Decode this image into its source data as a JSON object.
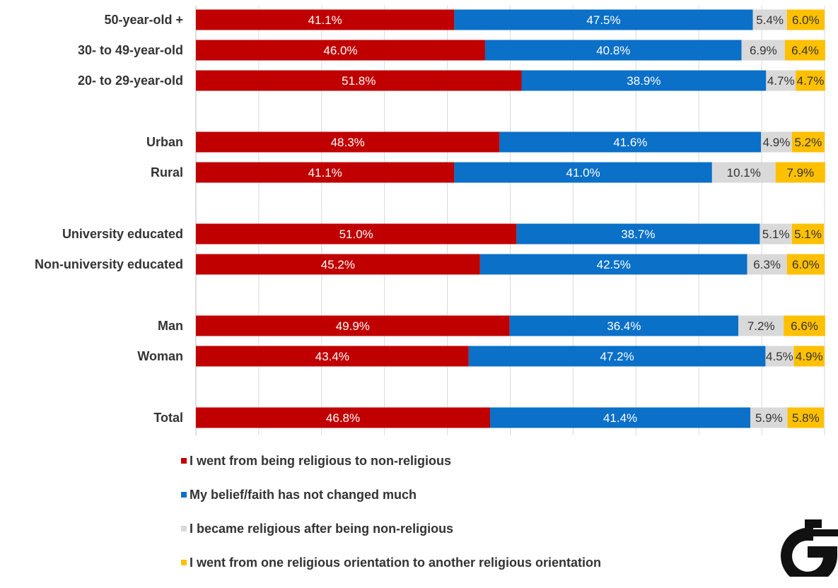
{
  "chart_data": {
    "type": "bar",
    "orientation": "horizontal",
    "stacked": true,
    "categories": [
      "50-year-old +",
      "30- to 49-year-old",
      "20- to 29-year-old",
      "Urban",
      "Rural",
      "University educated",
      "Non-university educated",
      "Man",
      "Woman",
      "Total"
    ],
    "series": [
      {
        "name": "I went from being religious to non-religious",
        "color": "#c00000",
        "values": [
          41.1,
          46.0,
          51.8,
          48.3,
          41.1,
          51.0,
          45.2,
          49.9,
          43.4,
          46.8
        ],
        "labels": [
          "41.1%",
          "46.0%",
          "51.8%",
          "48.3%",
          "41.1%",
          "51.0%",
          "45.2%",
          "49.9%",
          "43.4%",
          "46.8%"
        ]
      },
      {
        "name": "My belief/faith has not changed much",
        "color": "#0a70c8",
        "values": [
          47.5,
          40.8,
          38.9,
          41.6,
          41.0,
          38.7,
          42.5,
          36.4,
          47.2,
          41.4
        ],
        "labels": [
          "47.5%",
          "40.8%",
          "38.9%",
          "41.6%",
          "41.0%",
          "38.7%",
          "42.5%",
          "36.4%",
          "47.2%",
          "41.4%"
        ]
      },
      {
        "name": "I became religious after being non-religious",
        "color": "#d9d9d9",
        "values": [
          5.4,
          6.9,
          4.7,
          4.9,
          10.1,
          5.1,
          6.3,
          7.2,
          4.5,
          5.9
        ],
        "labels": [
          "5.4%",
          "6.9%",
          "4.7%",
          "4.9%",
          "10.1%",
          "5.1%",
          "6.3%",
          "7.2%",
          "4.5%",
          "5.9%"
        ]
      },
      {
        "name": "I went from one religious orientation to another religious orientation",
        "color": "#ffc000",
        "values": [
          6.0,
          6.4,
          4.7,
          5.2,
          7.9,
          5.1,
          6.0,
          6.6,
          4.9,
          5.8
        ],
        "labels": [
          "6.0%",
          "6.4%",
          "4.7%",
          "5.2%",
          "7.9%",
          "5.1%",
          "6.0%",
          "6.6%",
          "4.9%",
          "5.8%"
        ]
      }
    ],
    "xlim": [
      0,
      100
    ],
    "grid": true,
    "legend_position": "bottom"
  },
  "logo": {
    "name": "g-logo-icon"
  }
}
